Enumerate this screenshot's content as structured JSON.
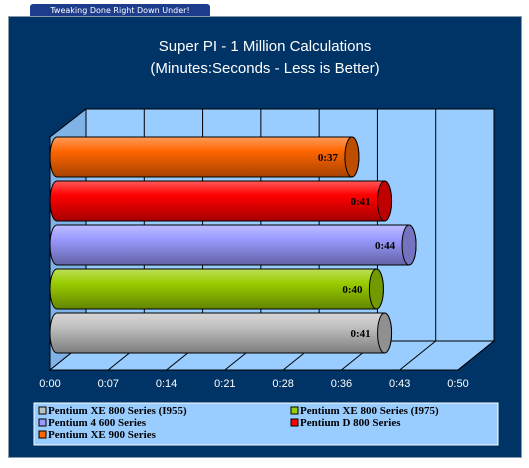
{
  "banner": "Tweaking Done Right Down Under!",
  "chart_data": {
    "type": "bar",
    "orientation": "horizontal",
    "title": "Super PI - 1 Million Calculations",
    "subtitle": "(Minutes:Seconds - Less is Better)",
    "x_ticks": [
      "0:00",
      "0:07",
      "0:14",
      "0:21",
      "0:28",
      "0:36",
      "0:43",
      "0:50"
    ],
    "xlim_seconds": [
      0,
      50
    ],
    "grid": true,
    "legend_position": "bottom",
    "series": [
      {
        "name": "Pentium XE 900 Series",
        "label": "0:37",
        "seconds": 37,
        "color": "#ff6600"
      },
      {
        "name": "Pentium D 800 Series",
        "label": "0:41",
        "seconds": 41,
        "color": "#ff0000"
      },
      {
        "name": "Pentium 4 600 Series",
        "label": "0:44",
        "seconds": 44,
        "color": "#9999ff"
      },
      {
        "name": "Pentium XE 800 Series (I975)",
        "label": "0:40",
        "seconds": 40,
        "color": "#99cc00"
      },
      {
        "name": "Pentium XE 800 Series (I955)",
        "label": "0:41",
        "seconds": 41,
        "color": "#c0c0c0"
      }
    ],
    "legend": [
      {
        "name": "Pentium XE 800 Series (I955)",
        "color": "#c0c0c0"
      },
      {
        "name": "Pentium XE 800 Series (I975)",
        "color": "#99cc00"
      },
      {
        "name": "Pentium 4 600 Series",
        "color": "#9999ff"
      },
      {
        "name": "Pentium D 800 Series",
        "color": "#ff0000"
      },
      {
        "name": "Pentium XE 900 Series",
        "color": "#ff6600"
      }
    ]
  }
}
